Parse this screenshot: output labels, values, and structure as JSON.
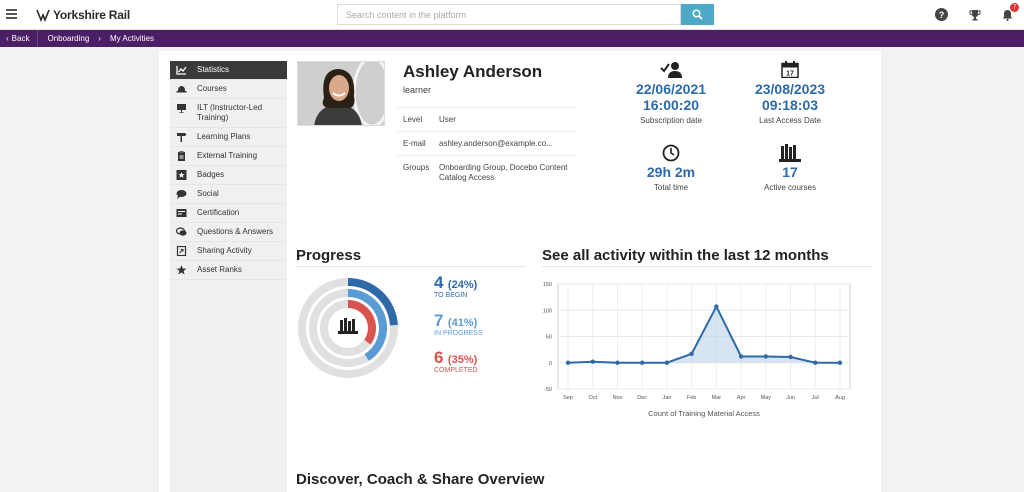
{
  "app": {
    "brand": "Yorkshire Rail"
  },
  "search": {
    "placeholder": "Search content in the platform"
  },
  "notifications": {
    "count": "7"
  },
  "breadcrumb": {
    "back": "Back",
    "items": [
      "Onboarding",
      "My Activities"
    ]
  },
  "sidebar": {
    "items": [
      {
        "label": "Statistics",
        "icon": "chart-icon",
        "active": true
      },
      {
        "label": "Courses",
        "icon": "hat-icon"
      },
      {
        "label": "ILT (Instructor-Led Training)",
        "icon": "presentation-icon"
      },
      {
        "label": "Learning Plans",
        "icon": "signpost-icon"
      },
      {
        "label": "External Training",
        "icon": "clipboard-icon"
      },
      {
        "label": "Badges",
        "icon": "star-badge-icon"
      },
      {
        "label": "Social",
        "icon": "chat-icon"
      },
      {
        "label": "Certification",
        "icon": "certificate-icon"
      },
      {
        "label": "Questions & Answers",
        "icon": "qa-icon"
      },
      {
        "label": "Sharing Activity",
        "icon": "share-icon"
      },
      {
        "label": "Asset Ranks",
        "icon": "star-icon"
      }
    ]
  },
  "profile": {
    "name": "Ashley Anderson",
    "role": "learner",
    "level_label": "Level",
    "level_value": "User",
    "email_label": "E-mail",
    "email_value": "ashley.anderson@example.co...",
    "groups_label": "Groups",
    "groups_value": "Onboarding Group, Docebo Content Catalog Access"
  },
  "stats": {
    "subscription": {
      "date": "22/06/2021",
      "time": "16:00:20",
      "label": "Subscription date"
    },
    "last_access": {
      "date": "23/08/2023",
      "time": "09:18:03",
      "label": "Last Access Date"
    },
    "total_time": {
      "value": "29h 2m",
      "label": "Total time"
    },
    "active_courses": {
      "value": "17",
      "label": "Active courses"
    }
  },
  "progress": {
    "title": "Progress",
    "to_begin": {
      "count": "4",
      "pct": "(24%)",
      "label": "TO BEGIN",
      "fraction": 0.24,
      "color": "#2e6aa7"
    },
    "in_progress": {
      "count": "7",
      "pct": "(41%)",
      "label": "IN PROGRESS",
      "fraction": 0.41,
      "color": "#5b9bd5"
    },
    "completed": {
      "count": "6",
      "pct": "(35%)",
      "label": "COMPLETED",
      "fraction": 0.35,
      "color": "#d9534f"
    }
  },
  "activity": {
    "title": "See all activity within the last 12 months"
  },
  "chart_data": {
    "type": "line",
    "categories": [
      "Sep",
      "Oct",
      "Nov",
      "Dec",
      "Jan",
      "Feb",
      "Mar",
      "Apr",
      "May",
      "Jun",
      "Jul",
      "Aug"
    ],
    "values": [
      0,
      2,
      0,
      0,
      0,
      17,
      107,
      12,
      12,
      11,
      0,
      0
    ],
    "xlabel": "Count of Training Material Access",
    "ylabel": "",
    "yticks": [
      150,
      100,
      50,
      0,
      -50
    ],
    "ylim": [
      -50,
      150
    ],
    "grid": true,
    "color": "#2e6aa7"
  },
  "discover": {
    "title": "Discover, Coach & Share Overview"
  }
}
